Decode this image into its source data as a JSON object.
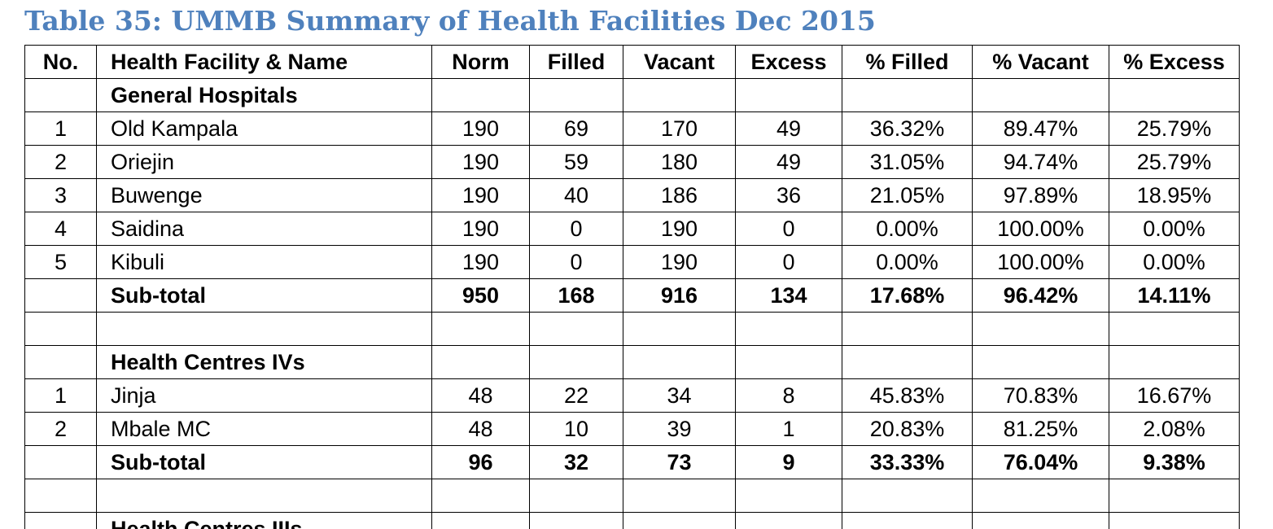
{
  "caption": "Table 35: UMMB Summary of Health Facilities Dec 2015",
  "headers": [
    "No.",
    "Health Facility & Name",
    "Norm",
    "Filled",
    "Vacant",
    "Excess",
    "% Filled",
    "% Vacant",
    "% Excess"
  ],
  "rows": [
    {
      "kind": "section",
      "cells": [
        "",
        "General Hospitals",
        "",
        "",
        "",
        "",
        "",
        "",
        ""
      ]
    },
    {
      "kind": "data",
      "cells": [
        "1",
        "Old Kampala",
        "190",
        "69",
        "170",
        "49",
        "36.32%",
        "89.47%",
        "25.79%"
      ]
    },
    {
      "kind": "data",
      "cells": [
        "2",
        "Oriejin",
        "190",
        "59",
        "180",
        "49",
        "31.05%",
        "94.74%",
        "25.79%"
      ]
    },
    {
      "kind": "data",
      "cells": [
        "3",
        "Buwenge",
        "190",
        "40",
        "186",
        "36",
        "21.05%",
        "97.89%",
        "18.95%"
      ]
    },
    {
      "kind": "data",
      "cells": [
        "4",
        "Saidina",
        "190",
        "0",
        "190",
        "0",
        "0.00%",
        "100.00%",
        "0.00%"
      ]
    },
    {
      "kind": "data",
      "cells": [
        "5",
        "Kibuli",
        "190",
        "0",
        "190",
        "0",
        "0.00%",
        "100.00%",
        "0.00%"
      ]
    },
    {
      "kind": "subtotal",
      "cells": [
        "",
        "Sub-total",
        "950",
        "168",
        "916",
        "134",
        "17.68%",
        "96.42%",
        "14.11%"
      ]
    },
    {
      "kind": "empty",
      "cells": [
        "",
        "",
        "",
        "",
        "",
        "",
        "",
        "",
        ""
      ]
    },
    {
      "kind": "section",
      "cells": [
        "",
        "Health Centres IVs",
        "",
        "",
        "",
        "",
        "",
        "",
        ""
      ]
    },
    {
      "kind": "data",
      "cells": [
        "1",
        "Jinja",
        "48",
        "22",
        "34",
        "8",
        "45.83%",
        "70.83%",
        "16.67%"
      ]
    },
    {
      "kind": "data",
      "cells": [
        "2",
        "Mbale MC",
        "48",
        "10",
        "39",
        "1",
        "20.83%",
        "81.25%",
        "2.08%"
      ]
    },
    {
      "kind": "subtotal",
      "cells": [
        "",
        "Sub-total",
        "96",
        "32",
        "73",
        "9",
        "33.33%",
        "76.04%",
        "9.38%"
      ]
    },
    {
      "kind": "empty",
      "cells": [
        "",
        "",
        "",
        "",
        "",
        "",
        "",
        "",
        ""
      ]
    },
    {
      "kind": "section",
      "cells": [
        "",
        "Health Centres IIIs",
        "",
        "",
        "",
        "",
        "",
        "",
        ""
      ]
    }
  ]
}
